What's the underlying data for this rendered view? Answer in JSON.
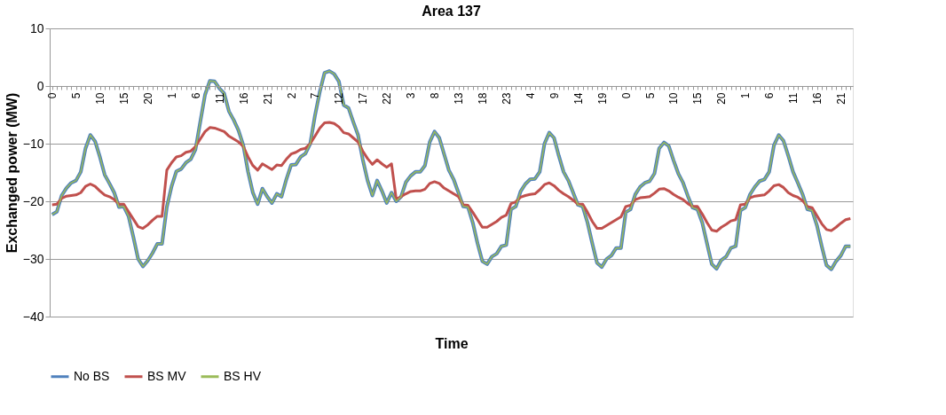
{
  "chart_data": {
    "type": "line",
    "title": "Area 137",
    "xlabel": "Time",
    "ylabel": "Exchanged power (MW)",
    "categories": [
      "0",
      null,
      null,
      null,
      null,
      "5",
      null,
      null,
      null,
      null,
      "10",
      null,
      null,
      null,
      null,
      "15",
      null,
      null,
      null,
      null,
      "20",
      null,
      null,
      null,
      null,
      "1",
      null,
      null,
      null,
      null,
      "6",
      null,
      null,
      null,
      null,
      "11",
      null,
      null,
      null,
      null,
      "16",
      null,
      null,
      null,
      null,
      "21",
      null,
      null,
      null,
      null,
      "2",
      null,
      null,
      null,
      null,
      "7",
      null,
      null,
      null,
      null,
      "12",
      null,
      null,
      null,
      null,
      "17",
      null,
      null,
      null,
      null,
      "22",
      null,
      null,
      null,
      null,
      "3",
      null,
      null,
      null,
      null,
      "8",
      null,
      null,
      null,
      null,
      "13",
      null,
      null,
      null,
      null,
      "18",
      null,
      null,
      null,
      null,
      "23",
      null,
      null,
      null,
      null,
      "4",
      null,
      null,
      null,
      null,
      "9",
      null,
      null,
      null,
      null,
      "14",
      null,
      null,
      null,
      null,
      "19",
      null,
      null,
      null,
      null,
      "0",
      null,
      null,
      null,
      null,
      "5",
      null,
      null,
      null,
      null,
      "10",
      null,
      null,
      null,
      null,
      "15",
      null,
      null,
      null,
      null,
      "20",
      null,
      null,
      null,
      null,
      "1",
      null,
      null,
      null,
      null,
      "6",
      null,
      null,
      null,
      null,
      "11",
      null,
      null,
      null,
      null,
      "16",
      null,
      null,
      null,
      null,
      "21",
      null,
      null
    ],
    "series": [
      {
        "name": "No BS",
        "color": "#4f81bd",
        "values": [
          -22.3,
          -21.8,
          -19,
          -17.7,
          -16.8,
          -16.4,
          -14.9,
          -10.8,
          -8.5,
          -9.6,
          -12.3,
          -15.4,
          -16.9,
          -18.5,
          -21,
          -20.9,
          -22.6,
          -26.2,
          -30,
          -31.3,
          -30.3,
          -29,
          -27.4,
          -27.4,
          -21,
          -17.4,
          -14.8,
          -14.4,
          -13.3,
          -12.7,
          -11,
          -6.2,
          -1.5,
          0.9,
          0.8,
          -0.4,
          -1.3,
          -4.4,
          -5.9,
          -7.7,
          -10.3,
          -14.9,
          -18.5,
          -20.5,
          -17.8,
          -19.2,
          -20.3,
          -18.7,
          -19.2,
          -16.2,
          -13.7,
          -13.6,
          -12.3,
          -11.7,
          -10,
          -5.1,
          -1,
          2.3,
          2.6,
          2.1,
          0.8,
          -3.3,
          -3.8,
          -6.2,
          -8.5,
          -12.8,
          -16.4,
          -19,
          -16.4,
          -18.2,
          -20.3,
          -18.5,
          -20,
          -19.2,
          -16.7,
          -15.6,
          -14.9,
          -14.9,
          -13.8,
          -9.7,
          -7.9,
          -9,
          -11.8,
          -14.6,
          -16.2,
          -18.5,
          -20.9,
          -21,
          -23.7,
          -27.3,
          -30.4,
          -30.9,
          -29.6,
          -29.1,
          -27.8,
          -27.6,
          -21.4,
          -20.9,
          -18.3,
          -17,
          -16.2,
          -16.1,
          -14.9,
          -10,
          -8.1,
          -9,
          -12.1,
          -14.9,
          -16.4,
          -18.5,
          -20.6,
          -20.9,
          -23.7,
          -27.3,
          -30.7,
          -31.4,
          -30,
          -29.4,
          -28.1,
          -28.1,
          -21.9,
          -21.4,
          -18.8,
          -17.5,
          -16.8,
          -16.5,
          -15.2,
          -10.8,
          -9.8,
          -10.4,
          -12.9,
          -15.2,
          -16.8,
          -19.1,
          -21.1,
          -21.4,
          -23.7,
          -27.3,
          -30.9,
          -31.7,
          -30.2,
          -29.6,
          -28.1,
          -27.8,
          -21.6,
          -21.1,
          -18.8,
          -17.5,
          -16.5,
          -16.2,
          -14.9,
          -10.3,
          -8.5,
          -9.5,
          -12.1,
          -14.9,
          -16.8,
          -18.8,
          -21.4,
          -21.6,
          -24.2,
          -27.8,
          -31.1,
          -31.8,
          -30.4,
          -29.4,
          -27.8,
          -27.8
        ]
      },
      {
        "name": "BS MV",
        "color": "#c0504d",
        "values": [
          -20.6,
          -20.5,
          -19.5,
          -19.1,
          -19,
          -18.9,
          -18.5,
          -17.4,
          -17,
          -17.4,
          -18.2,
          -18.9,
          -19.2,
          -19.7,
          -20.5,
          -20.5,
          -21.8,
          -23.1,
          -24.4,
          -24.7,
          -24.1,
          -23.3,
          -22.6,
          -22.6,
          -14.6,
          -13.3,
          -12.3,
          -12.1,
          -11.5,
          -11.3,
          -10.5,
          -9.2,
          -7.9,
          -7.2,
          -7.3,
          -7.6,
          -7.9,
          -8.7,
          -9.2,
          -9.7,
          -10.5,
          -12.3,
          -13.8,
          -14.6,
          -13.5,
          -14,
          -14.5,
          -13.7,
          -13.8,
          -12.7,
          -11.8,
          -11.5,
          -11,
          -10.8,
          -10,
          -8.7,
          -7.3,
          -6.4,
          -6.3,
          -6.5,
          -7.1,
          -8.1,
          -8.3,
          -9,
          -9.7,
          -11.3,
          -12.6,
          -13.6,
          -12.8,
          -13.5,
          -14.1,
          -13.5,
          -19.7,
          -19.2,
          -18.7,
          -18.3,
          -18.2,
          -18.2,
          -17.9,
          -16.9,
          -16.6,
          -16.9,
          -17.7,
          -18.2,
          -18.7,
          -19.2,
          -20.6,
          -20.7,
          -21.9,
          -23.2,
          -24.5,
          -24.5,
          -24,
          -23.5,
          -22.8,
          -22.4,
          -20.4,
          -20.1,
          -19.3,
          -19,
          -18.8,
          -18.7,
          -18,
          -17.1,
          -16.8,
          -17.3,
          -18.1,
          -18.7,
          -19.2,
          -19.8,
          -20.5,
          -20.5,
          -21.9,
          -23.5,
          -24.7,
          -24.7,
          -24.2,
          -23.7,
          -23.2,
          -22.7,
          -20.9,
          -20.7,
          -19.7,
          -19.4,
          -19.3,
          -19.2,
          -18.6,
          -17.9,
          -17.8,
          -18.2,
          -18.8,
          -19.3,
          -19.7,
          -20.4,
          -20.9,
          -20.9,
          -22.2,
          -23.7,
          -25,
          -25.2,
          -24.5,
          -24,
          -23.4,
          -23.2,
          -20.6,
          -20.5,
          -19.4,
          -19.1,
          -19,
          -18.9,
          -18.2,
          -17.3,
          -17.1,
          -17.6,
          -18.5,
          -19,
          -19.3,
          -19.9,
          -20.9,
          -21.1,
          -22.5,
          -23.9,
          -24.9,
          -25.1,
          -24.5,
          -23.8,
          -23.2,
          -23
        ]
      },
      {
        "name": "BS HV",
        "color": "#9bbb59",
        "values": [
          -22.3,
          -21.8,
          -19,
          -17.7,
          -16.8,
          -16.4,
          -14.9,
          -10.8,
          -8.5,
          -9.6,
          -12.3,
          -15.4,
          -16.9,
          -18.5,
          -21,
          -20.9,
          -22.6,
          -26.2,
          -30,
          -31.3,
          -30.3,
          -29,
          -27.4,
          -27.4,
          -21,
          -17.4,
          -14.8,
          -14.4,
          -13.3,
          -12.7,
          -11,
          -6.2,
          -1.5,
          0.9,
          0.8,
          -0.4,
          -1.3,
          -4.4,
          -5.9,
          -7.7,
          -10.3,
          -14.9,
          -18.5,
          -20.5,
          -17.8,
          -19.2,
          -20.3,
          -18.7,
          -19.2,
          -16.2,
          -13.7,
          -13.6,
          -12.3,
          -11.7,
          -10,
          -5.1,
          -1,
          2.3,
          2.6,
          2.1,
          0.8,
          -3.3,
          -3.8,
          -6.2,
          -8.5,
          -12.8,
          -16.4,
          -19,
          -16.4,
          -18.2,
          -20.3,
          -18.5,
          -20,
          -19.2,
          -16.7,
          -15.6,
          -14.9,
          -14.9,
          -13.8,
          -9.7,
          -7.9,
          -9,
          -11.8,
          -14.6,
          -16.2,
          -18.5,
          -20.9,
          -21,
          -23.7,
          -27.3,
          -30.4,
          -30.9,
          -29.6,
          -29.1,
          -27.8,
          -27.6,
          -21.4,
          -20.9,
          -18.3,
          -17,
          -16.2,
          -16.1,
          -14.9,
          -10,
          -8.1,
          -9,
          -12.1,
          -14.9,
          -16.4,
          -18.5,
          -20.6,
          -20.9,
          -23.7,
          -27.3,
          -30.7,
          -31.4,
          -30,
          -29.4,
          -28.1,
          -28.1,
          -21.9,
          -21.4,
          -18.8,
          -17.5,
          -16.8,
          -16.5,
          -15.2,
          -10.8,
          -9.8,
          -10.4,
          -12.9,
          -15.2,
          -16.8,
          -19.1,
          -21.1,
          -21.4,
          -23.7,
          -27.3,
          -30.9,
          -31.7,
          -30.2,
          -29.6,
          -28.1,
          -27.8,
          -21.6,
          -21.1,
          -18.8,
          -17.5,
          -16.5,
          -16.2,
          -14.9,
          -10.3,
          -8.5,
          -9.5,
          -12.1,
          -14.9,
          -16.8,
          -18.8,
          -21.4,
          -21.6,
          -24.2,
          -27.8,
          -31.1,
          -31.8,
          -30.4,
          -29.4,
          -27.8,
          -27.8
        ]
      }
    ],
    "ylim": [
      -40,
      10
    ],
    "yticks": [
      -40,
      -30,
      -20,
      -10,
      0,
      10
    ],
    "grid": "y",
    "legend": "bottom",
    "marker": "none",
    "line_style": "solid"
  }
}
